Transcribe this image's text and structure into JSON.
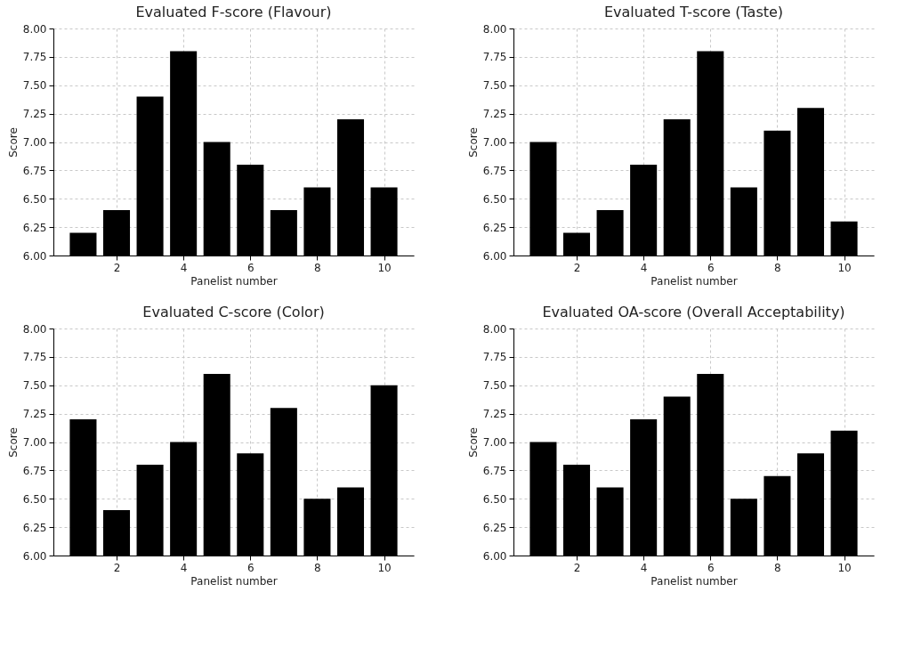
{
  "chart_data": [
    {
      "type": "bar",
      "title": "Evaluated F-score (Flavour)",
      "xlabel": "Panelist number",
      "ylabel": "Score",
      "x": [
        1,
        2,
        3,
        4,
        5,
        6,
        7,
        8,
        9,
        10
      ],
      "values": [
        6.2,
        6.4,
        7.4,
        7.8,
        7.0,
        6.8,
        6.4,
        6.6,
        7.2,
        6.6
      ],
      "color": "#000000",
      "xlim": [
        0.11,
        10.89
      ],
      "xticks": [
        2,
        4,
        6,
        8,
        10
      ],
      "ylim": [
        6,
        8
      ],
      "yticks": [
        {
          "value": 6,
          "label": "6.00"
        },
        {
          "value": 6.25,
          "label": "6.25"
        },
        {
          "value": 6.5,
          "label": "6.50"
        },
        {
          "value": 6.75,
          "label": "6.75"
        },
        {
          "value": 7,
          "label": "7.00"
        },
        {
          "value": 7.25,
          "label": "7.25"
        },
        {
          "value": 7.5,
          "label": "7.50"
        },
        {
          "value": 7.75,
          "label": "7.75"
        },
        {
          "value": 8,
          "label": "8.00"
        }
      ],
      "grid": true
    },
    {
      "type": "bar",
      "title": "Evaluated T-score (Taste)",
      "xlabel": "Panelist number",
      "ylabel": "Score",
      "x": [
        1,
        2,
        3,
        4,
        5,
        6,
        7,
        8,
        9,
        10
      ],
      "values": [
        7.0,
        6.2,
        6.4,
        6.8,
        7.2,
        7.8,
        6.6,
        7.1,
        7.3,
        6.3
      ],
      "color": "#000000",
      "xlim": [
        0.11,
        10.89
      ],
      "xticks": [
        2,
        4,
        6,
        8,
        10
      ],
      "ylim": [
        6,
        8
      ],
      "yticks": [
        {
          "value": 6,
          "label": "6.00"
        },
        {
          "value": 6.25,
          "label": "6.25"
        },
        {
          "value": 6.5,
          "label": "6.50"
        },
        {
          "value": 6.75,
          "label": "6.75"
        },
        {
          "value": 7,
          "label": "7.00"
        },
        {
          "value": 7.25,
          "label": "7.25"
        },
        {
          "value": 7.5,
          "label": "7.50"
        },
        {
          "value": 7.75,
          "label": "7.75"
        },
        {
          "value": 8,
          "label": "8.00"
        }
      ],
      "grid": true
    },
    {
      "type": "bar",
      "title": "Evaluated C-score (Color)",
      "xlabel": "Panelist number",
      "ylabel": "Score",
      "x": [
        1,
        2,
        3,
        4,
        5,
        6,
        7,
        8,
        9,
        10
      ],
      "values": [
        7.2,
        6.4,
        6.8,
        7.0,
        7.6,
        6.9,
        7.3,
        6.5,
        6.6,
        7.5
      ],
      "color": "#000000",
      "xlim": [
        0.11,
        10.89
      ],
      "xticks": [
        2,
        4,
        6,
        8,
        10
      ],
      "ylim": [
        6,
        8
      ],
      "yticks": [
        {
          "value": 6,
          "label": "6.00"
        },
        {
          "value": 6.25,
          "label": "6.25"
        },
        {
          "value": 6.5,
          "label": "6.50"
        },
        {
          "value": 6.75,
          "label": "6.75"
        },
        {
          "value": 7,
          "label": "7.00"
        },
        {
          "value": 7.25,
          "label": "7.25"
        },
        {
          "value": 7.5,
          "label": "7.50"
        },
        {
          "value": 7.75,
          "label": "7.75"
        },
        {
          "value": 8,
          "label": "8.00"
        }
      ],
      "grid": true
    },
    {
      "type": "bar",
      "title": "Evaluated OA-score (Overall Acceptability)",
      "xlabel": "Panelist number",
      "ylabel": "Score",
      "x": [
        1,
        2,
        3,
        4,
        5,
        6,
        7,
        8,
        9,
        10
      ],
      "values": [
        7.0,
        6.8,
        6.6,
        7.2,
        7.4,
        7.6,
        6.5,
        6.7,
        6.9,
        7.1
      ],
      "color": "#000000",
      "xlim": [
        0.11,
        10.89
      ],
      "xticks": [
        2,
        4,
        6,
        8,
        10
      ],
      "ylim": [
        6,
        8
      ],
      "yticks": [
        {
          "value": 6,
          "label": "6.00"
        },
        {
          "value": 6.25,
          "label": "6.25"
        },
        {
          "value": 6.5,
          "label": "6.50"
        },
        {
          "value": 6.75,
          "label": "6.75"
        },
        {
          "value": 7,
          "label": "7.00"
        },
        {
          "value": 7.25,
          "label": "7.25"
        },
        {
          "value": 7.5,
          "label": "7.50"
        },
        {
          "value": 7.75,
          "label": "7.75"
        },
        {
          "value": 8,
          "label": "8.00"
        }
      ],
      "grid": true
    }
  ]
}
